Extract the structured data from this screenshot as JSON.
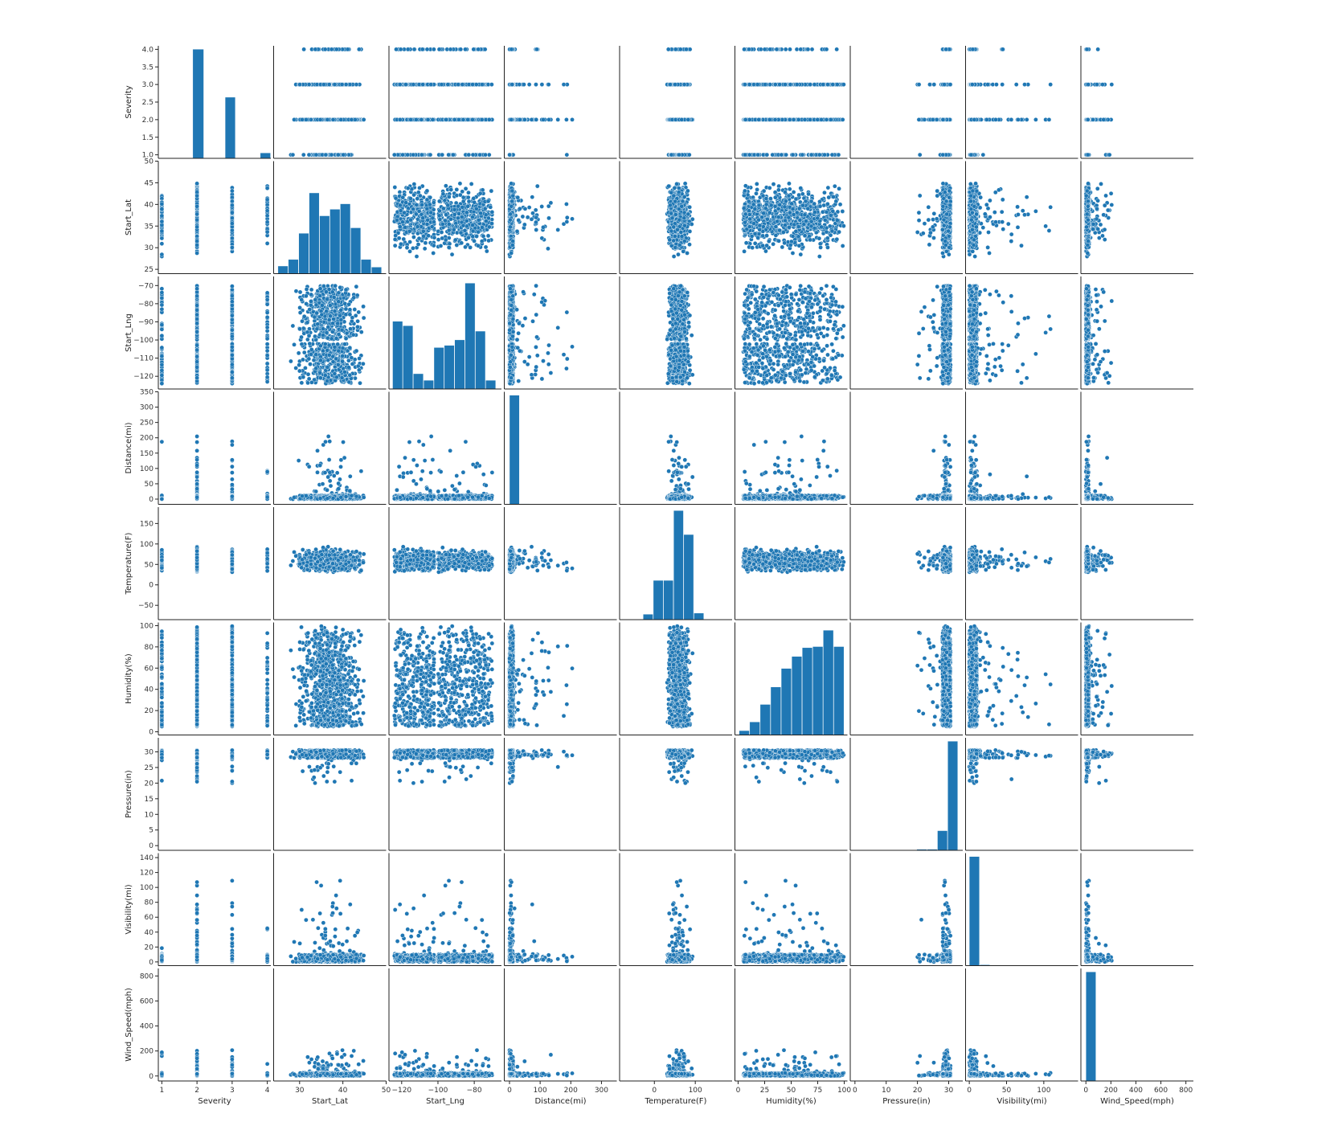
{
  "chart_data": {
    "type": "pairplot",
    "point_color": "#1f77b4",
    "bar_color": "#1f77b4",
    "variables": [
      {
        "name": "Severity",
        "range": [
          0.9,
          4.1
        ],
        "ticks": [
          {
            "v": 1,
            "label": "1"
          },
          {
            "v": 2,
            "label": "2"
          },
          {
            "v": 3,
            "label": "3"
          },
          {
            "v": 4,
            "label": "4"
          }
        ],
        "ylabels": [
          "1.0",
          "1.5",
          "2.0",
          "2.5",
          "3.0",
          "3.5",
          "4.0"
        ]
      },
      {
        "name": "Start_Lat",
        "range": [
          24,
          50
        ],
        "ticks": [
          {
            "v": 30,
            "label": "30"
          },
          {
            "v": 40,
            "label": "40"
          },
          {
            "v": 50,
            "label": "50"
          }
        ],
        "yticks": [
          25,
          30,
          35,
          40,
          45,
          50
        ]
      },
      {
        "name": "Start_Lng",
        "range": [
          -127,
          -65
        ],
        "ticks": [
          {
            "v": -120,
            "label": "−120"
          },
          {
            "v": -100,
            "label": "−100"
          },
          {
            "v": -80,
            "label": "−80"
          }
        ],
        "yticks": [
          -120,
          -110,
          -100,
          -90,
          -80,
          -70
        ]
      },
      {
        "name": "Distance(mi)",
        "range": [
          -17,
          350
        ],
        "ticks": [
          {
            "v": 0,
            "label": "0"
          },
          {
            "v": 100,
            "label": "100"
          },
          {
            "v": 200,
            "label": "200"
          },
          {
            "v": 300,
            "label": "300"
          }
        ],
        "yticks": [
          0,
          50,
          100,
          150,
          200,
          250,
          300,
          350
        ]
      },
      {
        "name": "Temperature(F)",
        "range": [
          -85,
          190
        ],
        "ticks": [
          {
            "v": 0,
            "label": "0"
          },
          {
            "v": 100,
            "label": "100"
          }
        ],
        "yticks": [
          -50,
          0,
          50,
          100,
          150
        ]
      },
      {
        "name": "Humidity(%)",
        "range": [
          -3,
          103
        ],
        "ticks": [
          {
            "v": 0,
            "label": "0"
          },
          {
            "v": 25,
            "label": "25"
          },
          {
            "v": 50,
            "label": "50"
          },
          {
            "v": 75,
            "label": "75"
          },
          {
            "v": 100,
            "label": "100"
          }
        ],
        "yticks": [
          0,
          20,
          40,
          60,
          80,
          100
        ]
      },
      {
        "name": "Pressure(in)",
        "range": [
          -1.5,
          34.5
        ],
        "ticks": [
          {
            "v": 0,
            "label": "0"
          },
          {
            "v": 10,
            "label": "10"
          },
          {
            "v": 20,
            "label": "20"
          },
          {
            "v": 30,
            "label": "30"
          }
        ],
        "yticks": [
          0,
          5,
          10,
          15,
          20,
          25,
          30
        ]
      },
      {
        "name": "Visibility(mi)",
        "range": [
          -5,
          146
        ],
        "ticks": [
          {
            "v": 0,
            "label": "0"
          },
          {
            "v": 50,
            "label": "50"
          },
          {
            "v": 100,
            "label": "100"
          }
        ],
        "yticks": [
          0,
          20,
          40,
          60,
          80,
          100,
          120,
          140
        ]
      },
      {
        "name": "Wind_Speed(mph)",
        "range": [
          -40,
          860
        ],
        "ticks": [
          {
            "v": 0,
            "label": "0"
          },
          {
            "v": 200,
            "label": "200"
          },
          {
            "v": 400,
            "label": "400"
          },
          {
            "v": 600,
            "label": "600"
          },
          {
            "v": 800,
            "label": "800"
          }
        ],
        "yticks": [
          0,
          200,
          400,
          600,
          800
        ]
      }
    ],
    "histograms": [
      {
        "bins": [
          [
            0.92,
            1.08,
            0
          ],
          [
            1.08,
            1.24,
            0
          ],
          [
            1.24,
            1.4,
            0
          ],
          [
            1.4,
            1.56,
            0
          ],
          [
            1.56,
            1.72,
            0
          ],
          [
            1.72,
            1.88,
            0
          ],
          [
            1.88,
            2.2,
            1.0
          ],
          [
            2.2,
            2.6,
            0
          ],
          [
            2.6,
            2.8,
            0
          ],
          [
            2.8,
            3.1,
            0.56
          ],
          [
            3.1,
            3.6,
            0
          ],
          [
            3.6,
            3.8,
            0
          ],
          [
            3.8,
            4.1,
            0.05
          ]
        ]
      },
      {
        "bins": [
          [
            25,
            27.4,
            0.07
          ],
          [
            27.4,
            29.8,
            0.13
          ],
          [
            29.8,
            32.2,
            0.37
          ],
          [
            32.2,
            34.6,
            0.74
          ],
          [
            34.6,
            37.0,
            0.53
          ],
          [
            37.0,
            39.4,
            0.59
          ],
          [
            39.4,
            41.8,
            0.64
          ],
          [
            41.8,
            44.2,
            0.42
          ],
          [
            44.2,
            46.6,
            0.13
          ],
          [
            46.6,
            49.0,
            0.06
          ]
        ]
      },
      {
        "bins": [
          [
            -125,
            -119.3,
            0.62
          ],
          [
            -119.3,
            -113.6,
            0.58
          ],
          [
            -113.6,
            -107.9,
            0.14
          ],
          [
            -107.9,
            -102.2,
            0.08
          ],
          [
            -102.2,
            -96.5,
            0.38
          ],
          [
            -96.5,
            -90.8,
            0.4
          ],
          [
            -90.8,
            -85.1,
            0.45
          ],
          [
            -85.1,
            -79.4,
            0.97
          ],
          [
            -79.4,
            -73.7,
            0.53
          ],
          [
            -73.7,
            -68,
            0.08
          ]
        ]
      },
      {
        "bins": [
          [
            0,
            33.3,
            1.0
          ],
          [
            33.3,
            66.6,
            0.005
          ],
          [
            66.6,
            99.9,
            0.003
          ],
          [
            99.9,
            133.2,
            0.002
          ],
          [
            133.2,
            166.5,
            0.001
          ],
          [
            166.5,
            199.8,
            0.001
          ]
        ]
      },
      {
        "bins": [
          [
            -77,
            -52.2,
            0.002
          ],
          [
            -52.2,
            -27.4,
            0.002
          ],
          [
            -27.4,
            -2.6,
            0.05
          ],
          [
            -2.6,
            22.2,
            0.36
          ],
          [
            22.2,
            47,
            0.36
          ],
          [
            47,
            71.8,
            1.0
          ],
          [
            71.8,
            96.6,
            0.78
          ],
          [
            96.6,
            121.4,
            0.06
          ],
          [
            121.4,
            146.2,
            0.003
          ],
          [
            146.2,
            171,
            0.001
          ]
        ]
      },
      {
        "bins": [
          [
            1,
            10.9,
            0.04
          ],
          [
            10.9,
            20.8,
            0.12
          ],
          [
            20.8,
            30.7,
            0.28
          ],
          [
            30.7,
            40.6,
            0.44
          ],
          [
            40.6,
            50.5,
            0.61
          ],
          [
            50.5,
            60.4,
            0.72
          ],
          [
            60.4,
            70.3,
            0.8
          ],
          [
            70.3,
            80.2,
            0.81
          ],
          [
            80.2,
            90.1,
            0.96
          ],
          [
            90.1,
            100,
            0.81
          ]
        ]
      },
      {
        "bins": [
          [
            0,
            3.3,
            0.001
          ],
          [
            3.3,
            6.6,
            0.001
          ],
          [
            6.6,
            9.9,
            0.001
          ],
          [
            9.9,
            13.2,
            0.001
          ],
          [
            13.2,
            16.5,
            0.001
          ],
          [
            16.5,
            19.8,
            0.003
          ],
          [
            19.8,
            23.1,
            0.01
          ],
          [
            23.1,
            26.4,
            0.01
          ],
          [
            26.4,
            29.7,
            0.18
          ],
          [
            29.7,
            33,
            1.0
          ]
        ]
      },
      {
        "bins": [
          [
            0,
            14,
            1.0
          ],
          [
            14,
            28,
            0.008
          ],
          [
            28,
            42,
            0.004
          ],
          [
            42,
            56,
            0.003
          ],
          [
            56,
            70,
            0.002
          ],
          [
            70,
            84,
            0.002
          ],
          [
            84,
            98,
            0.001
          ],
          [
            98,
            112,
            0.001
          ],
          [
            112,
            126,
            0.001
          ],
          [
            126,
            140,
            0.001
          ]
        ]
      },
      {
        "bins": [
          [
            0,
            82.2,
            1.0
          ],
          [
            82.2,
            164.4,
            0.002
          ],
          [
            164.4,
            246.6,
            0.001
          ],
          [
            246.6,
            328.8,
            0.001
          ],
          [
            328.8,
            411,
            0.001
          ],
          [
            411,
            493.2,
            0.001
          ],
          [
            493.2,
            575.4,
            0.001
          ],
          [
            575.4,
            657.6,
            0.001
          ],
          [
            657.6,
            739.8,
            0.001
          ],
          [
            739.8,
            822,
            0.001
          ]
        ]
      }
    ]
  }
}
